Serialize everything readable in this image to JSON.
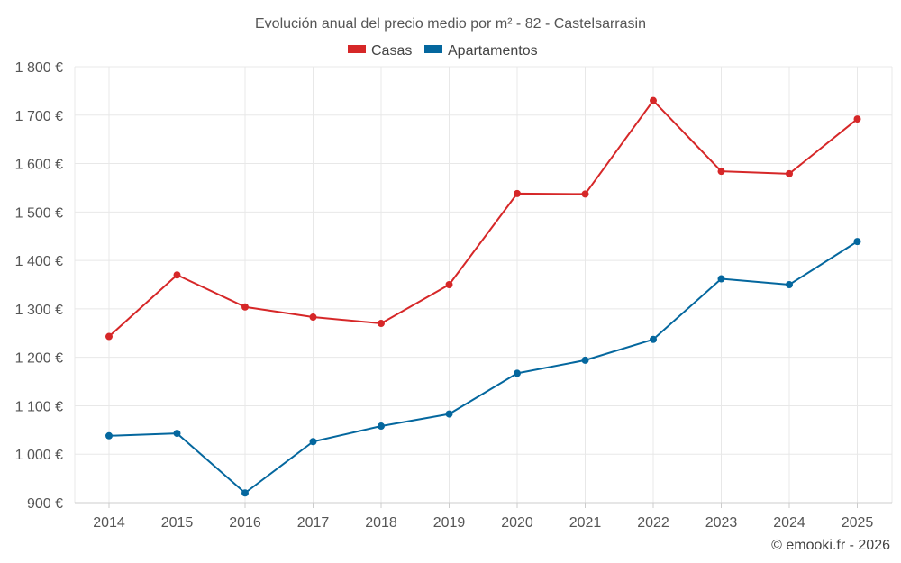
{
  "chart_data": {
    "type": "line",
    "title": "Evolución anual del precio medio por m² - 82 - Castelsarrasin",
    "categories": [
      "2014",
      "2015",
      "2016",
      "2017",
      "2018",
      "2019",
      "2020",
      "2021",
      "2022",
      "2023",
      "2024",
      "2025"
    ],
    "series": [
      {
        "name": "Casas",
        "color": "#d62728",
        "values": [
          1243,
          1370,
          1304,
          1283,
          1270,
          1350,
          1538,
          1537,
          1730,
          1584,
          1579,
          1692
        ]
      },
      {
        "name": "Apartamentos",
        "color": "#04679e",
        "values": [
          1038,
          1043,
          920,
          1026,
          1058,
          1083,
          1167,
          1194,
          1237,
          1362,
          1350,
          1439
        ]
      }
    ],
    "ylim": [
      900,
      1800
    ],
    "yticks": [
      900,
      1000,
      1100,
      1200,
      1300,
      1400,
      1500,
      1600,
      1700,
      1800
    ],
    "ytick_labels": [
      "900 €",
      "1 000 €",
      "1 100 €",
      "1 200 €",
      "1 300 €",
      "1 400 €",
      "1 500 €",
      "1 600 €",
      "1 700 €",
      "1 800 €"
    ],
    "xlabel": "",
    "ylabel": "",
    "grid": true,
    "legend_position": "top-center"
  },
  "credit": "© emooki.fr - 2026"
}
